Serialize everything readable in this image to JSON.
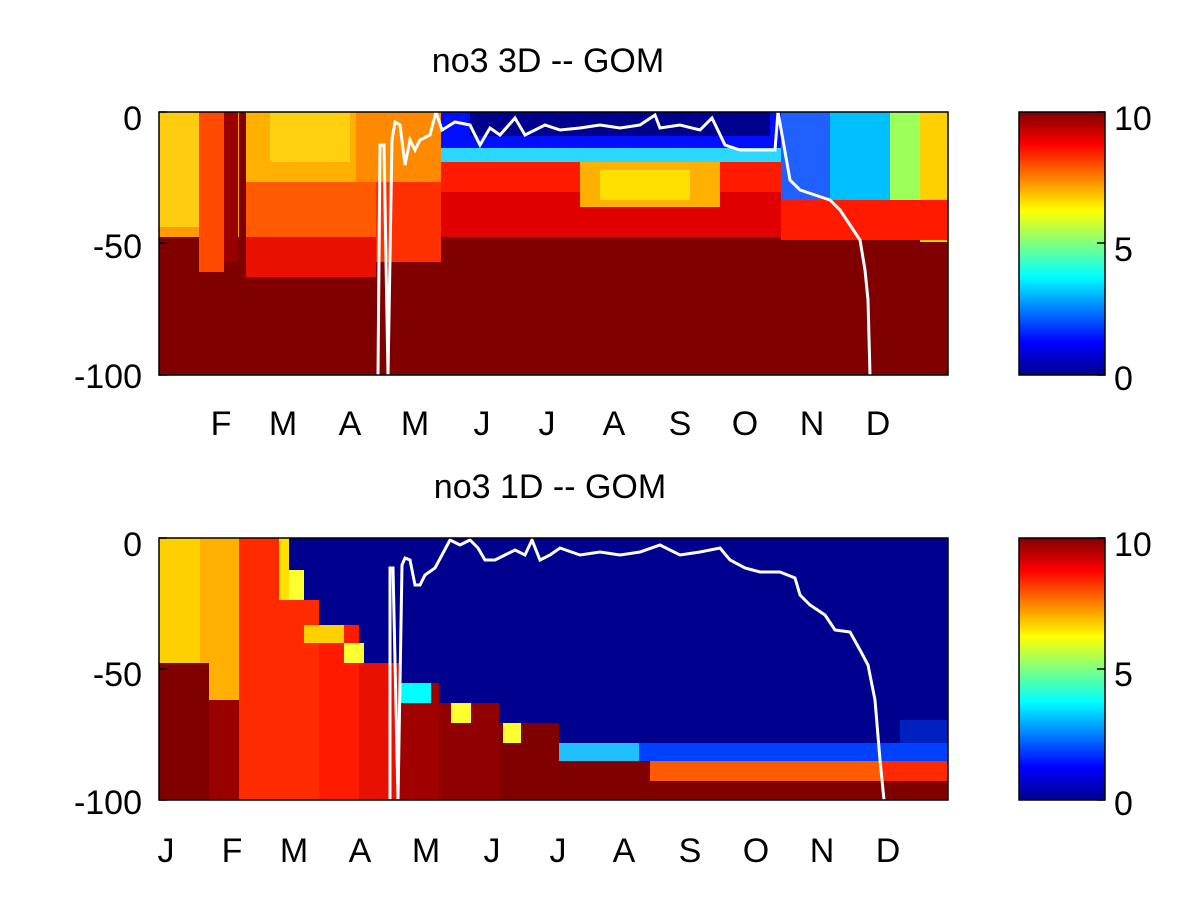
{
  "chart_data": [
    {
      "type": "heatmap",
      "title": "no3 3D   -- GOM",
      "xlabel": "",
      "ylabel": "",
      "x_tick_labels": [
        "F",
        "M",
        "A",
        "M",
        "J",
        "J",
        "A",
        "S",
        "O",
        "N",
        "D"
      ],
      "y_ticks": [
        0,
        -50,
        -100
      ],
      "y_tick_labels": [
        "0",
        "-50",
        "-100"
      ],
      "ylim": [
        -100,
        0
      ],
      "colormap": "jet",
      "clim": [
        0,
        10
      ],
      "colorbar_ticks": [
        "10",
        "5",
        "0"
      ],
      "line_color": "#ffffff",
      "mixed_layer_depth_by_month": [
        -8,
        -100,
        -20,
        -4,
        -8,
        -6,
        -6,
        -4,
        -14,
        -40,
        -100
      ]
    },
    {
      "type": "heatmap",
      "title": "no3 1D   -- GOM",
      "xlabel": "",
      "ylabel": "",
      "x_tick_labels": [
        "J",
        "F",
        "M",
        "A",
        "M",
        "J",
        "J",
        "A",
        "S",
        "O",
        "N",
        "D"
      ],
      "y_ticks": [
        0,
        -50,
        -100
      ],
      "y_tick_labels": [
        "0",
        "-50",
        "-100"
      ],
      "ylim": [
        -100,
        0
      ],
      "colormap": "jet",
      "clim": [
        0,
        10
      ],
      "colorbar_ticks": [
        "10",
        "5",
        "0"
      ],
      "line_color": "#ffffff",
      "mixed_layer_depth_by_month": [
        -100,
        -12,
        -20,
        -8,
        -8,
        -6,
        -6,
        -8,
        -16,
        -34,
        -68,
        -100
      ]
    }
  ]
}
